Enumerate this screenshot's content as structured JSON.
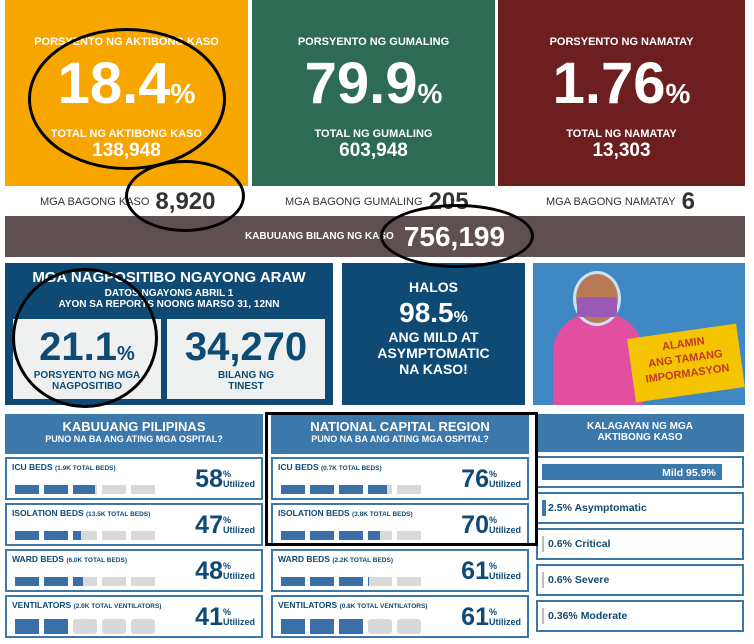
{
  "top": [
    {
      "label": "PORSYENTO NG AKTIBONG KASO",
      "value": "18.4",
      "unit": "%",
      "sub_label": "TOTAL NG AKTIBONG KASO",
      "sub_value": "138,948",
      "color": "#f7a600"
    },
    {
      "label": "PORSYENTO NG GUMALING",
      "value": "79.9",
      "unit": "%",
      "sub_label": "TOTAL NG GUMALING",
      "sub_value": "603,948",
      "color": "#2e6b55"
    },
    {
      "label": "PORSYENTO NG NAMATAY",
      "value": "1.76",
      "unit": "%",
      "sub_label": "TOTAL NG NAMATAY",
      "sub_value": "13,303",
      "color": "#6d1f1f"
    }
  ],
  "new": [
    {
      "label": "MGA BAGONG KASO",
      "value": "8,920"
    },
    {
      "label": "MGA BAGONG GUMALING",
      "value": "205"
    },
    {
      "label": "MGA BAGONG NAMATAY",
      "value": "6"
    }
  ],
  "total": {
    "label": "KABUUANG BILANG NG KASO",
    "value": "756,199"
  },
  "positivity": {
    "title": "MGA NAGPOSITIBO NGAYONG ARAW",
    "line1": "DATOS NGAYONG ABRIL 1",
    "line2": "AYON SA REPORTS NOONG MARSO 31, 12NN",
    "rate": "21.1",
    "rate_unit": "%",
    "rate_label1": "PORSYENTO NG MGA",
    "rate_label2": "NAGPOSITIBO",
    "tested": "34,270",
    "tested_label1": "BILANG NG",
    "tested_label2": "TINEST"
  },
  "halos": {
    "title": "HALOS",
    "value": "98.5",
    "unit": "%",
    "line1": "ANG MILD AT",
    "line2": "ASYMPTOMATIC",
    "line3": "NA KASO!"
  },
  "promo": {
    "text1": "ALAMIN",
    "text2": "ANG TAMANG",
    "text3": "IMPORMASYON"
  },
  "util_label": "Utilized",
  "ph": {
    "title": "KABUUANG PILIPINAS",
    "subtitle": "PUNO NA BA ANG ATING MGA OSPITAL?",
    "items": [
      {
        "name": "ICU BEDS",
        "cap": "(1.9K TOTAL BEDS)",
        "value": 58
      },
      {
        "name": "ISOLATION BEDS",
        "cap": "(13.5K TOTAL BEDS)",
        "value": 47
      },
      {
        "name": "WARD BEDS",
        "cap": "(6.0K TOTAL BEDS)",
        "value": 48
      },
      {
        "name": "VENTILATORS",
        "cap": "(2.0K TOTAL VENTILATORS)",
        "value": 41
      }
    ]
  },
  "ncr": {
    "title": "NATIONAL CAPITAL REGION",
    "subtitle": "PUNO NA BA ANG ATING MGA OSPITAL?",
    "items": [
      {
        "name": "ICU BEDS",
        "cap": "(0.7K TOTAL BEDS)",
        "value": 76
      },
      {
        "name": "ISOLATION BEDS",
        "cap": "(3.8K TOTAL BEDS)",
        "value": 70
      },
      {
        "name": "WARD BEDS",
        "cap": "(2.2K TOTAL BEDS)",
        "value": 61
      },
      {
        "name": "VENTILATORS",
        "cap": "(0.8K TOTAL VENTILATORS)",
        "value": 61
      }
    ]
  },
  "status": {
    "title1": "KALAGAYAN NG MGA",
    "title2": "AKTIBONG KASO",
    "items": [
      {
        "label": "Mild 95.9%",
        "pct": 95.9
      },
      {
        "label": "2.5% Asymptomatic",
        "pct": 2.5
      },
      {
        "label": "0.6% Critical",
        "pct": 0.6
      },
      {
        "label": "0.6% Severe",
        "pct": 0.6
      },
      {
        "label": "0.36% Moderate",
        "pct": 0.36
      }
    ]
  }
}
